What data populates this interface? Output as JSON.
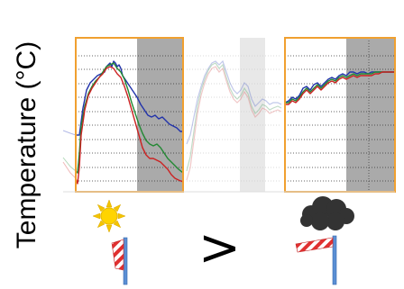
{
  "ylabel": "Temperature (°C)",
  "comparison_symbol": ">",
  "icons": {
    "sun": "sun-icon",
    "cloud": "cloud-icon",
    "windsock_left": "windsock-icon",
    "windsock_right": "windsock-icon"
  },
  "colors": {
    "frame": "#f0a030",
    "shade": "#aaaaaa",
    "series": [
      "#2233aa",
      "#228833",
      "#cc2222"
    ]
  }
}
